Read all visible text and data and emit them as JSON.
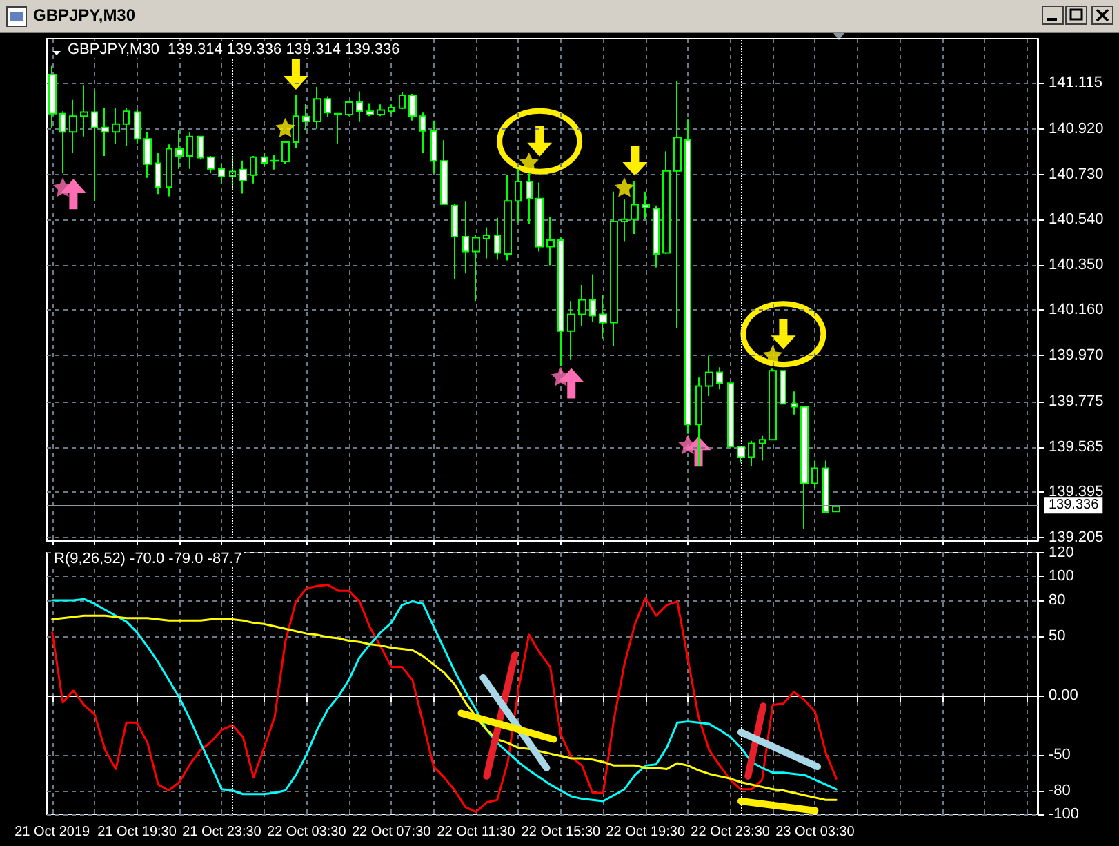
{
  "chart_data": [
    {
      "type": "candlestick",
      "title": "GBPJPY,M30",
      "annotations": [
        "GBPJPY,M30  139.314 139.336 139.314 139.336"
      ],
      "x": [
        "2019-10-21T15:30",
        "2019-10-21T16:00",
        "2019-10-21T16:30",
        "2019-10-21T17:00",
        "2019-10-21T17:30",
        "2019-10-21T18:00",
        "2019-10-21T18:30",
        "2019-10-21T19:00",
        "2019-10-21T19:30",
        "2019-10-21T20:00",
        "2019-10-21T20:30",
        "2019-10-21T21:00",
        "2019-10-21T21:30",
        "2019-10-21T22:00",
        "2019-10-21T22:30",
        "2019-10-21T23:00",
        "2019-10-21T23:30",
        "2019-10-22T00:00",
        "2019-10-22T00:30",
        "2019-10-22T01:00",
        "2019-10-22T01:30",
        "2019-10-22T02:00",
        "2019-10-22T02:30",
        "2019-10-22T03:00",
        "2019-10-22T03:30",
        "2019-10-22T04:00",
        "2019-10-22T04:30",
        "2019-10-22T05:00",
        "2019-10-22T05:30",
        "2019-10-22T06:00",
        "2019-10-22T06:30",
        "2019-10-22T07:00",
        "2019-10-22T07:30",
        "2019-10-22T08:00",
        "2019-10-22T08:30",
        "2019-10-22T09:00",
        "2019-10-22T09:30",
        "2019-10-22T10:00",
        "2019-10-22T10:30",
        "2019-10-22T11:00",
        "2019-10-22T11:30",
        "2019-10-22T12:00",
        "2019-10-22T12:30",
        "2019-10-22T13:00",
        "2019-10-22T13:30",
        "2019-10-22T14:00",
        "2019-10-22T14:30",
        "2019-10-22T15:00",
        "2019-10-22T15:30",
        "2019-10-22T16:00",
        "2019-10-22T16:30",
        "2019-10-22T17:00",
        "2019-10-22T17:30",
        "2019-10-22T18:00",
        "2019-10-22T18:30",
        "2019-10-22T19:00",
        "2019-10-22T19:30",
        "2019-10-22T20:00",
        "2019-10-22T20:30",
        "2019-10-22T21:00",
        "2019-10-22T21:30",
        "2019-10-22T22:00",
        "2019-10-22T22:30",
        "2019-10-22T23:00",
        "2019-10-22T23:30",
        "2019-10-23T00:00",
        "2019-10-23T00:30",
        "2019-10-23T01:00",
        "2019-10-23T01:30",
        "2019-10-23T02:00",
        "2019-10-23T02:30",
        "2019-10-23T03:00",
        "2019-10-23T03:30",
        "2019-10-23T04:00",
        "2019-10-23T04:30"
      ],
      "ohlc": [
        [
          141.149,
          141.188,
          140.927,
          140.985
        ],
        [
          140.985,
          140.995,
          140.734,
          140.908
        ],
        [
          140.908,
          141.043,
          140.821,
          140.975
        ],
        [
          140.975,
          141.105,
          140.889,
          140.991
        ],
        [
          140.991,
          141.085,
          140.618,
          140.927
        ],
        [
          140.927,
          141.008,
          140.807,
          140.908
        ],
        [
          140.908,
          141.01,
          140.858,
          140.941
        ],
        [
          140.941,
          141.01,
          140.85,
          140.995
        ],
        [
          140.991,
          141.004,
          140.86,
          140.879
        ],
        [
          140.879,
          140.908,
          140.715,
          140.773
        ],
        [
          140.777,
          140.821,
          140.647,
          140.676
        ],
        [
          140.676,
          140.856,
          140.638,
          140.838
        ],
        [
          140.836,
          140.917,
          140.753,
          140.807
        ],
        [
          140.807,
          140.908,
          140.753,
          140.889
        ],
        [
          140.889,
          140.892,
          140.792,
          140.8
        ],
        [
          140.802,
          140.807,
          140.734,
          140.753
        ],
        [
          140.753,
          140.773,
          140.692,
          140.721
        ],
        [
          140.723,
          140.802,
          140.667,
          140.742
        ],
        [
          140.75,
          140.788,
          140.649,
          140.703
        ],
        [
          140.727,
          140.807,
          140.692,
          140.802
        ],
        [
          140.802,
          140.821,
          140.763,
          140.778
        ],
        [
          140.786,
          140.811,
          140.75,
          140.788
        ],
        [
          140.784,
          140.869,
          140.773,
          140.865
        ],
        [
          140.865,
          141.062,
          140.84,
          140.975
        ],
        [
          140.973,
          141.027,
          140.917,
          140.952
        ],
        [
          140.952,
          141.097,
          140.921,
          141.047
        ],
        [
          141.047,
          141.058,
          140.97,
          140.989
        ],
        [
          140.985,
          140.985,
          140.86,
          140.981
        ],
        [
          140.981,
          141.033,
          140.975,
          141.033
        ],
        [
          141.033,
          141.078,
          140.95,
          140.995
        ],
        [
          140.995,
          141.029,
          140.975,
          140.981
        ],
        [
          140.981,
          141.024,
          140.975,
          141.0
        ],
        [
          140.995,
          141.024,
          140.985,
          141.01
        ],
        [
          141.008,
          141.076,
          141.004,
          141.062
        ],
        [
          141.062,
          141.068,
          140.956,
          140.975
        ],
        [
          140.975,
          140.989,
          140.821,
          140.912
        ],
        [
          140.912,
          140.956,
          140.734,
          140.786
        ],
        [
          140.786,
          140.873,
          140.605,
          140.605
        ],
        [
          140.599,
          140.605,
          140.29,
          140.468
        ],
        [
          140.468,
          140.615,
          140.314,
          140.406
        ],
        [
          140.406,
          140.474,
          140.198,
          140.464
        ],
        [
          140.46,
          140.507,
          140.377,
          140.474
        ],
        [
          140.474,
          140.547,
          140.371,
          140.4
        ],
        [
          140.396,
          140.728,
          140.368,
          140.618
        ],
        [
          140.618,
          140.753,
          140.532,
          140.7
        ],
        [
          140.7,
          140.734,
          140.522,
          140.628
        ],
        [
          140.628,
          140.696,
          140.406,
          140.426
        ],
        [
          140.426,
          140.551,
          140.348,
          140.454
        ],
        [
          140.454,
          140.464,
          139.924,
          140.072
        ],
        [
          140.072,
          140.198,
          139.953,
          140.142
        ],
        [
          140.142,
          140.265,
          140.094,
          140.203
        ],
        [
          140.203,
          140.31,
          140.111,
          140.136
        ],
        [
          140.142,
          140.223,
          140.04,
          140.107
        ],
        [
          140.107,
          140.657,
          140.007,
          140.532
        ],
        [
          140.532,
          140.624,
          140.449,
          140.541
        ],
        [
          140.541,
          140.7,
          140.48,
          140.603
        ],
        [
          140.603,
          140.657,
          140.541,
          140.59
        ],
        [
          140.586,
          140.599,
          140.339,
          140.396
        ],
        [
          140.4,
          140.827,
          140.396,
          140.744
        ],
        [
          140.744,
          141.12,
          140.084,
          140.885
        ],
        [
          140.875,
          140.96,
          139.64,
          139.679
        ],
        [
          139.679,
          139.876,
          139.505,
          139.841
        ],
        [
          139.841,
          139.968,
          139.799,
          139.899
        ],
        [
          139.899,
          139.92,
          139.827,
          139.853
        ],
        [
          139.853,
          139.853,
          139.586,
          139.586
        ],
        [
          139.586,
          139.586,
          139.519,
          139.542
        ],
        [
          139.542,
          139.611,
          139.503,
          139.6
        ],
        [
          139.6,
          139.631,
          139.528,
          139.615
        ],
        [
          139.615,
          139.914,
          139.615,
          139.905
        ],
        [
          139.905,
          139.905,
          139.766,
          139.766
        ],
        [
          139.766,
          139.818,
          139.721,
          139.754
        ],
        [
          139.754,
          139.754,
          139.239,
          139.432
        ],
        [
          139.432,
          139.528,
          139.413,
          139.496
        ],
        [
          139.496,
          139.528,
          139.307,
          139.312
        ],
        [
          139.314,
          139.336,
          139.314,
          139.336
        ]
      ],
      "color": "#00ff00",
      "colors": [
        "#ffffff",
        "#ffffff",
        "#000000",
        "#000000",
        "#ffffff",
        "#ffffff",
        "#000000",
        "#000000",
        "#ffffff",
        "#ffffff",
        "#ffffff",
        "#000000",
        "#ffffff",
        "#000000",
        "#ffffff",
        "#ffffff",
        "#ffffff",
        "#000000",
        "#ffffff",
        "#000000",
        "#ffffff",
        "#000000",
        "#000000",
        "#000000",
        "#ffffff",
        "#000000",
        "#ffffff",
        "#ffffff",
        "#000000",
        "#ffffff",
        "#ffffff",
        "#000000",
        "#000000",
        "#000000",
        "#ffffff",
        "#ffffff",
        "#ffffff",
        "#ffffff",
        "#ffffff",
        "#ffffff",
        "#000000",
        "#000000",
        "#ffffff",
        "#000000",
        "#000000",
        "#ffffff",
        "#ffffff",
        "#000000",
        "#ffffff",
        "#000000",
        "#000000",
        "#ffffff",
        "#ffffff",
        "#000000",
        "#000000",
        "#000000",
        "#ffffff",
        "#ffffff",
        "#000000",
        "#000000",
        "#ffffff",
        "#000000",
        "#000000",
        "#ffffff",
        "#ffffff",
        "#ffffff",
        "#000000",
        "#000000",
        "#000000",
        "#ffffff",
        "#ffffff",
        "#ffffff",
        "#000000",
        "#ffffff",
        "#000000"
      ],
      "series": [
        {
          "type": "scatter",
          "marker": "star",
          "color": "#ff6eb4",
          "x": [
            "2019-10-21T16:00",
            "2019-10-22T15:30",
            "2019-10-22T21:30"
          ],
          "values": [
            140.676,
            139.881,
            139.595
          ]
        },
        {
          "type": "scatter",
          "marker": "star",
          "color": "#ffee00",
          "x": [
            "2019-10-22T02:30",
            "2019-10-22T14:00",
            "2019-10-22T18:30",
            "2019-10-23T01:30"
          ],
          "values": [
            140.927,
            140.782,
            140.676,
            139.972
          ]
        }
      ],
      "xlim": [
        "2019-10-21T15:15",
        "2019-10-23T14:00"
      ],
      "xticks": [
        {
          "value": "2019-10-21T15:30",
          "label": null
        },
        {
          "value": "2019-10-21T17:30",
          "label": null
        },
        {
          "value": "2019-10-21T19:30",
          "label": null
        },
        {
          "value": "2019-10-21T21:30",
          "label": null
        },
        {
          "value": "2019-10-21T23:30",
          "label": null
        },
        {
          "value": "2019-10-22T01:30",
          "label": null
        },
        {
          "value": "2019-10-22T03:30",
          "label": null
        },
        {
          "value": "2019-10-22T05:30",
          "label": null
        },
        {
          "value": "2019-10-22T07:30",
          "label": null
        },
        {
          "value": "2019-10-22T09:30",
          "label": null
        },
        {
          "value": "2019-10-22T11:30",
          "label": null
        },
        {
          "value": "2019-10-22T13:30",
          "label": null
        },
        {
          "value": "2019-10-22T15:30",
          "label": null
        },
        {
          "value": "2019-10-22T17:30",
          "label": null
        },
        {
          "value": "2019-10-22T19:30",
          "label": null
        },
        {
          "value": "2019-10-22T21:30",
          "label": null
        },
        {
          "value": "2019-10-22T23:30",
          "label": null
        },
        {
          "value": "2019-10-23T01:30",
          "label": null
        },
        {
          "value": "2019-10-23T03:30",
          "label": null
        },
        {
          "value": "2019-10-23T05:30",
          "label": null
        },
        {
          "value": "2019-10-23T07:30",
          "label": null
        },
        {
          "value": "2019-10-23T09:30",
          "label": null
        },
        {
          "value": "2019-10-23T11:30",
          "label": null
        },
        {
          "value": "2019-10-23T13:30",
          "label": null
        }
      ],
      "ylim": [
        139.19,
        141.3
      ],
      "yticks": [
        141.115,
        {
          "value": 140.92,
          "label": "140.920"
        },
        {
          "value": 140.73,
          "label": "140.730"
        },
        {
          "value": 140.54,
          "label": "140.540"
        },
        {
          "value": 140.35,
          "label": "140.350"
        },
        {
          "value": 140.16,
          "label": "140.160"
        },
        {
          "value": 139.97,
          "label": "139.970"
        },
        139.775,
        139.585,
        139.395,
        139.205
      ],
      "tick_labels": "y",
      "grid": true,
      "ref_lines": [
        {
          "axis": "y",
          "value": 139.336,
          "label": "139.336",
          "color": "#8c96a0",
          "line_style": "solid"
        },
        {
          "axis": "x",
          "value": "2019-10-22T00:00",
          "color": "#ffffff",
          "line_style": "dotted"
        },
        {
          "axis": "x",
          "value": "2019-10-23T00:00",
          "color": "#ffffff",
          "line_style": "dotted"
        }
      ]
    },
    {
      "type": "line",
      "title": "R(9,26,52) -70.0 -79.0 -87.7",
      "x": [
        "2019-10-21T15:30",
        "2019-10-21T16:00",
        "2019-10-21T16:30",
        "2019-10-21T17:00",
        "2019-10-21T17:30",
        "2019-10-21T18:00",
        "2019-10-21T18:30",
        "2019-10-21T19:00",
        "2019-10-21T19:30",
        "2019-10-21T20:00",
        "2019-10-21T20:30",
        "2019-10-21T21:00",
        "2019-10-21T21:30",
        "2019-10-21T22:00",
        "2019-10-21T22:30",
        "2019-10-21T23:00",
        "2019-10-21T23:30",
        "2019-10-22T00:00",
        "2019-10-22T00:30",
        "2019-10-22T01:00",
        "2019-10-22T01:30",
        "2019-10-22T02:00",
        "2019-10-22T02:30",
        "2019-10-22T03:00",
        "2019-10-22T03:30",
        "2019-10-22T04:00",
        "2019-10-22T04:30",
        "2019-10-22T05:00",
        "2019-10-22T05:30",
        "2019-10-22T06:00",
        "2019-10-22T06:30",
        "2019-10-22T07:00",
        "2019-10-22T07:30",
        "2019-10-22T08:00",
        "2019-10-22T08:30",
        "2019-10-22T09:00",
        "2019-10-22T09:30",
        "2019-10-22T10:00",
        "2019-10-22T10:30",
        "2019-10-22T11:00",
        "2019-10-22T11:30",
        "2019-10-22T12:00",
        "2019-10-22T12:30",
        "2019-10-22T13:00",
        "2019-10-22T13:30",
        "2019-10-22T14:00",
        "2019-10-22T14:30",
        "2019-10-22T15:00",
        "2019-10-22T15:30",
        "2019-10-22T16:00",
        "2019-10-22T16:30",
        "2019-10-22T17:00",
        "2019-10-22T17:30",
        "2019-10-22T18:00",
        "2019-10-22T18:30",
        "2019-10-22T19:00",
        "2019-10-22T19:30",
        "2019-10-22T20:00",
        "2019-10-22T20:30",
        "2019-10-22T21:00",
        "2019-10-22T21:30",
        "2019-10-22T22:00",
        "2019-10-22T22:30",
        "2019-10-22T23:00",
        "2019-10-22T23:30",
        "2019-10-23T00:00",
        "2019-10-23T00:30",
        "2019-10-23T01:00",
        "2019-10-23T01:30",
        "2019-10-23T02:00",
        "2019-10-23T02:30",
        "2019-10-23T03:00",
        "2019-10-23T03:30",
        "2019-10-23T04:00",
        "2019-10-23T04:30"
      ],
      "series": [
        {
          "color": "#ff0000",
          "values": [
            53,
            -6,
            4,
            -8,
            -16,
            -46,
            -62,
            -23,
            -23,
            -40,
            -75,
            -80,
            -73,
            -58,
            -46,
            -39,
            -29,
            -25,
            -35,
            -69,
            -44,
            -18,
            45,
            79,
            90,
            92,
            93,
            88,
            88,
            79,
            57,
            41,
            24,
            24,
            13,
            -23,
            -60,
            -69,
            -80,
            -94,
            -98,
            -90,
            -88,
            -56,
            5,
            51,
            36,
            24,
            -33,
            -52,
            -59,
            -82,
            -82,
            -21,
            26,
            60,
            82,
            67,
            76,
            79,
            30,
            -18,
            -46,
            -59,
            -71,
            -79,
            -79,
            -71,
            -8,
            -7,
            3,
            -4,
            -14,
            -48,
            -70
          ]
        },
        {
          "color": "#00ffff",
          "values": [
            80,
            80,
            80,
            81,
            77,
            72,
            67,
            62,
            53,
            41,
            28,
            13,
            -2,
            -20,
            -40,
            -59,
            -79,
            -80,
            -83,
            -83,
            -83,
            -82,
            -80,
            -67,
            -50,
            -29,
            -12,
            -1,
            13,
            32,
            43,
            53,
            61,
            76,
            79,
            77,
            58,
            39,
            20,
            3,
            -12,
            -29,
            -40,
            -48,
            -56,
            -63,
            -69,
            -75,
            -80,
            -85,
            -87,
            -88,
            -89,
            -84,
            -79,
            -67,
            -59,
            -58,
            -44,
            -23,
            -22,
            -23,
            -24,
            -29,
            -35,
            -44,
            -56,
            -61,
            -65,
            -65,
            -66,
            -67,
            -71,
            -75,
            -79
          ]
        },
        {
          "color": "#ffff00",
          "values": [
            64,
            65,
            66,
            67,
            67,
            67,
            66,
            65,
            65,
            65,
            64,
            63,
            63,
            63,
            63,
            64,
            64,
            64,
            63,
            61,
            60,
            58,
            56,
            54,
            52,
            51,
            49,
            48,
            46,
            45,
            43,
            42,
            40,
            39,
            38,
            33,
            26,
            19,
            9,
            -6,
            -18,
            -29,
            -37,
            -40,
            -44,
            -45,
            -47,
            -49,
            -51,
            -53,
            -53,
            -54,
            -56,
            -59,
            -59,
            -59,
            -61,
            -61,
            -62,
            -57,
            -59,
            -63,
            -66,
            -68,
            -70,
            -73,
            -75,
            -77,
            -79,
            -80,
            -82,
            -84,
            -86,
            -88,
            -88
          ]
        },
        {
          "color": "#e8202a",
          "x": [
            "2019-10-22T12:00",
            "2019-10-22T13:20"
          ],
          "values": [
            -68,
            34
          ]
        },
        {
          "color": "#a8d8e8",
          "x": [
            "2019-10-22T11:50",
            "2019-10-22T14:50"
          ],
          "values": [
            15,
            -61
          ]
        },
        {
          "color": "#ffee00",
          "x": [
            "2019-10-22T10:48",
            "2019-10-22T15:10"
          ],
          "values": [
            -15,
            -37
          ]
        },
        {
          "color": "#e8202a",
          "x": [
            "2019-10-23T00:20",
            "2019-10-23T01:03"
          ],
          "values": [
            -68,
            -9
          ]
        },
        {
          "color": "#a8d8e8",
          "x": [
            "2019-10-23T00:00",
            "2019-10-23T03:37"
          ],
          "values": [
            -31,
            -60
          ]
        },
        {
          "color": "#ffee00",
          "x": [
            "2019-10-23T00:00",
            "2019-10-23T03:30"
          ],
          "values": [
            -89,
            -97
          ]
        }
      ],
      "marker": "none",
      "xlim": [
        "2019-10-21T15:15",
        "2019-10-23T14:00"
      ],
      "xticks": [
        {
          "value": "2019-10-21T15:30",
          "label": "21 Oct 2019"
        },
        {
          "value": "2019-10-21T17:30",
          "label": null
        },
        {
          "value": "2019-10-21T19:30",
          "label": "21 Oct 19:30"
        },
        {
          "value": "2019-10-21T21:30",
          "label": null
        },
        {
          "value": "2019-10-21T23:30",
          "label": "21 Oct 23:30"
        },
        {
          "value": "2019-10-22T01:30",
          "label": null
        },
        {
          "value": "2019-10-22T03:30",
          "label": "22 Oct 03:30"
        },
        {
          "value": "2019-10-22T05:30",
          "label": null
        },
        {
          "value": "2019-10-22T07:30",
          "label": "22 Oct 07:30"
        },
        {
          "value": "2019-10-22T09:30",
          "label": null
        },
        {
          "value": "2019-10-22T11:30",
          "label": "22 Oct 11:30"
        },
        {
          "value": "2019-10-22T13:30",
          "label": null
        },
        {
          "value": "2019-10-22T15:30",
          "label": "22 Oct 15:30"
        },
        {
          "value": "2019-10-22T17:30",
          "label": null
        },
        {
          "value": "2019-10-22T19:30",
          "label": "22 Oct 19:30"
        },
        {
          "value": "2019-10-22T21:30",
          "label": null
        },
        {
          "value": "2019-10-22T23:30",
          "label": "22 Oct 23:30"
        },
        {
          "value": "2019-10-23T01:30",
          "label": null
        },
        {
          "value": "2019-10-23T03:30",
          "label": "23 Oct 03:30"
        },
        {
          "value": "2019-10-23T05:30",
          "label": null
        },
        {
          "value": "2019-10-23T07:30",
          "label": null
        },
        {
          "value": "2019-10-23T09:30",
          "label": null
        },
        {
          "value": "2019-10-23T11:30",
          "label": null
        },
        {
          "value": "2019-10-23T13:30",
          "label": null
        }
      ],
      "ylim": [
        -100,
        120
      ],
      "yticks": [
        120,
        100,
        80,
        50,
        {
          "value": 0,
          "label": "0.00"
        },
        -50,
        -80,
        -100
      ],
      "grid": true,
      "ref_lines": [
        {
          "axis": "x",
          "value": "2019-10-22T00:00",
          "color": "#ffffff",
          "line_style": "dotted"
        },
        {
          "axis": "x",
          "value": "2019-10-23T00:00",
          "color": "#ffffff",
          "line_style": "dotted"
        }
      ]
    }
  ]
}
